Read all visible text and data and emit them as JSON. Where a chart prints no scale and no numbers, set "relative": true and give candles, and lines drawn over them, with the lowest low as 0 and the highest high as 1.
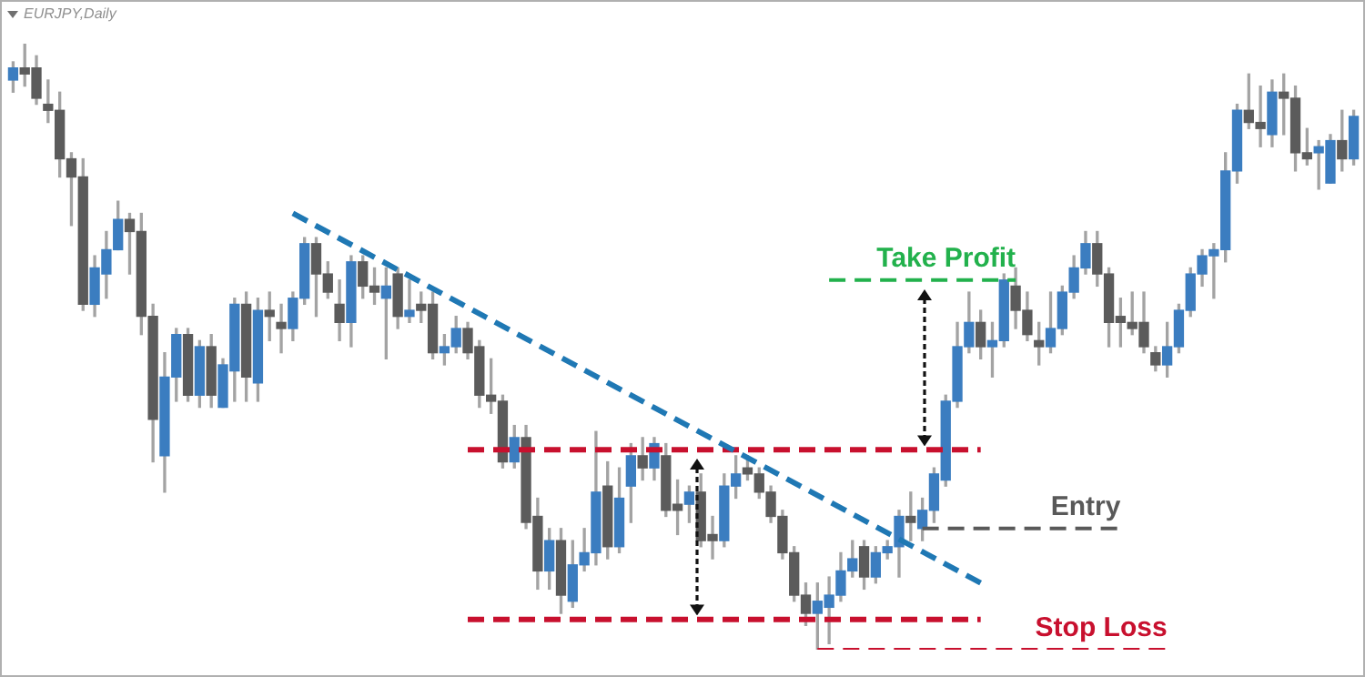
{
  "chart_data": {
    "type": "candlestick",
    "title": "EURJPY,Daily",
    "relative": true,
    "legend": false,
    "tick_labels": false,
    "categories": [
      null,
      null,
      null,
      null,
      null,
      null,
      null,
      null,
      null,
      null,
      null,
      null,
      null,
      null,
      null,
      null,
      null,
      null,
      null,
      null,
      null,
      null,
      null,
      null,
      null,
      null,
      null,
      null,
      null,
      null,
      null,
      null,
      null,
      null,
      null,
      null,
      null,
      null,
      null,
      null,
      null,
      null,
      null,
      null,
      null,
      null,
      null,
      null,
      null,
      null,
      null,
      null,
      null,
      null,
      null,
      null,
      null,
      null,
      null,
      null,
      null,
      null,
      null,
      null,
      null,
      null,
      null,
      null,
      null,
      null,
      null,
      null,
      null,
      null,
      null,
      null,
      null,
      null,
      null,
      null,
      null,
      null,
      null,
      null,
      null,
      null,
      null,
      null,
      null,
      null,
      null,
      null,
      null,
      null,
      null,
      null,
      null,
      null,
      null,
      null,
      null,
      null,
      null,
      null,
      null,
      null,
      null,
      null,
      null,
      null,
      null,
      null,
      null,
      null,
      null,
      null
    ],
    "ohlc": [
      [
        0.94,
        0.97,
        0.92,
        0.96
      ],
      [
        0.96,
        1,
        0.93,
        0.95
      ],
      [
        0.96,
        0.98,
        0.9,
        0.91
      ],
      [
        0.9,
        0.94,
        0.87,
        0.89
      ],
      [
        0.89,
        0.92,
        0.78,
        0.81
      ],
      [
        0.81,
        0.82,
        0.7,
        0.78
      ],
      [
        0.78,
        0.81,
        0.56,
        0.57
      ],
      [
        0.57,
        0.65,
        0.55,
        0.63
      ],
      [
        0.62,
        0.69,
        0.58,
        0.66
      ],
      [
        0.66,
        0.74,
        0.66,
        0.71
      ],
      [
        0.71,
        0.72,
        0.62,
        0.69
      ],
      [
        0.69,
        0.72,
        0.52,
        0.55
      ],
      [
        0.55,
        0.57,
        0.31,
        0.38
      ],
      [
        0.32,
        0.49,
        0.26,
        0.45
      ],
      [
        0.45,
        0.53,
        0.41,
        0.52
      ],
      [
        0.52,
        0.53,
        0.41,
        0.42
      ],
      [
        0.42,
        0.51,
        0.4,
        0.5
      ],
      [
        0.5,
        0.52,
        0.4,
        0.42
      ],
      [
        0.4,
        0.48,
        0.4,
        0.47
      ],
      [
        0.46,
        0.58,
        0.41,
        0.57
      ],
      [
        0.57,
        0.59,
        0.41,
        0.45
      ],
      [
        0.44,
        0.58,
        0.41,
        0.56
      ],
      [
        0.56,
        0.59,
        0.51,
        0.55
      ],
      [
        0.54,
        0.57,
        0.49,
        0.53
      ],
      [
        0.53,
        0.59,
        0.51,
        0.58
      ],
      [
        0.58,
        0.68,
        0.57,
        0.67
      ],
      [
        0.67,
        0.68,
        0.55,
        0.62
      ],
      [
        0.62,
        0.64,
        0.58,
        0.59
      ],
      [
        0.57,
        0.61,
        0.51,
        0.54
      ],
      [
        0.54,
        0.65,
        0.5,
        0.64
      ],
      [
        0.64,
        0.65,
        0.58,
        0.6
      ],
      [
        0.6,
        0.63,
        0.57,
        0.59
      ],
      [
        0.58,
        0.63,
        0.48,
        0.6
      ],
      [
        0.62,
        0.63,
        0.53,
        0.55
      ],
      [
        0.55,
        0.61,
        0.54,
        0.56
      ],
      [
        0.57,
        0.59,
        0.54,
        0.56
      ],
      [
        0.57,
        0.59,
        0.48,
        0.49
      ],
      [
        0.49,
        0.52,
        0.47,
        0.5
      ],
      [
        0.5,
        0.55,
        0.49,
        0.53
      ],
      [
        0.53,
        0.54,
        0.48,
        0.49
      ],
      [
        0.5,
        0.51,
        0.4,
        0.42
      ],
      [
        0.42,
        0.48,
        0.39,
        0.41
      ],
      [
        0.41,
        0.42,
        0.3,
        0.31
      ],
      [
        0.31,
        0.37,
        0.3,
        0.35
      ],
      [
        0.35,
        0.37,
        0.2,
        0.21
      ],
      [
        0.22,
        0.25,
        0.1,
        0.13
      ],
      [
        0.13,
        0.2,
        0.1,
        0.18
      ],
      [
        0.18,
        0.2,
        0.06,
        0.09
      ],
      [
        0.08,
        0.18,
        0.07,
        0.14
      ],
      [
        0.14,
        0.2,
        0.13,
        0.16
      ],
      [
        0.16,
        0.36,
        0.14,
        0.26
      ],
      [
        0.27,
        0.31,
        0.15,
        0.17
      ],
      [
        0.17,
        0.3,
        0.16,
        0.25
      ],
      [
        0.27,
        0.34,
        0.21,
        0.32
      ],
      [
        0.32,
        0.35,
        0.28,
        0.3
      ],
      [
        0.3,
        0.35,
        0.28,
        0.34
      ],
      [
        0.32,
        0.34,
        0.22,
        0.23
      ],
      [
        0.24,
        0.28,
        0.19,
        0.23
      ],
      [
        0.24,
        0.27,
        0.21,
        0.26
      ],
      [
        0.26,
        0.29,
        0.17,
        0.18
      ],
      [
        0.19,
        0.22,
        0.15,
        0.18
      ],
      [
        0.18,
        0.29,
        0.17,
        0.27
      ],
      [
        0.27,
        0.32,
        0.25,
        0.29
      ],
      [
        0.3,
        0.32,
        0.28,
        0.29
      ],
      [
        0.29,
        0.3,
        0.25,
        0.26
      ],
      [
        0.26,
        0.27,
        0.21,
        0.22
      ],
      [
        0.22,
        0.23,
        0.15,
        0.16
      ],
      [
        0.16,
        0.17,
        0.08,
        0.09
      ],
      [
        0.09,
        0.11,
        0.04,
        0.06
      ],
      [
        0.06,
        0.11,
        0,
        0.08
      ],
      [
        0.07,
        0.12,
        0.01,
        0.09
      ],
      [
        0.09,
        0.16,
        0.08,
        0.13
      ],
      [
        0.13,
        0.18,
        0.12,
        0.15
      ],
      [
        0.17,
        0.18,
        0.1,
        0.12
      ],
      [
        0.12,
        0.17,
        0.11,
        0.16
      ],
      [
        0.16,
        0.18,
        0.15,
        0.17
      ],
      [
        0.17,
        0.23,
        0.12,
        0.22
      ],
      [
        0.22,
        0.26,
        0.18,
        0.21
      ],
      [
        0.2,
        0.25,
        0.18,
        0.23
      ],
      [
        0.23,
        0.3,
        0.21,
        0.29
      ],
      [
        0.28,
        0.42,
        0.27,
        0.41
      ],
      [
        0.41,
        0.54,
        0.4,
        0.5
      ],
      [
        0.5,
        0.59,
        0.49,
        0.54
      ],
      [
        0.54,
        0.56,
        0.48,
        0.5
      ],
      [
        0.5,
        0.54,
        0.45,
        0.51
      ],
      [
        0.51,
        0.62,
        0.5,
        0.61
      ],
      [
        0.6,
        0.63,
        0.53,
        0.56
      ],
      [
        0.56,
        0.59,
        0.51,
        0.52
      ],
      [
        0.51,
        0.54,
        0.47,
        0.5
      ],
      [
        0.5,
        0.59,
        0.49,
        0.53
      ],
      [
        0.53,
        0.6,
        0.52,
        0.59
      ],
      [
        0.59,
        0.65,
        0.58,
        0.63
      ],
      [
        0.63,
        0.69,
        0.62,
        0.67
      ],
      [
        0.67,
        0.69,
        0.6,
        0.62
      ],
      [
        0.62,
        0.63,
        0.5,
        0.54
      ],
      [
        0.55,
        0.58,
        0.5,
        0.54
      ],
      [
        0.54,
        0.59,
        0.52,
        0.53
      ],
      [
        0.54,
        0.59,
        0.49,
        0.5
      ],
      [
        0.49,
        0.5,
        0.46,
        0.47
      ],
      [
        0.47,
        0.54,
        0.45,
        0.5
      ],
      [
        0.5,
        0.57,
        0.49,
        0.56
      ],
      [
        0.56,
        0.63,
        0.55,
        0.62
      ],
      [
        0.62,
        0.66,
        0.6,
        0.65
      ],
      [
        0.65,
        0.67,
        0.58,
        0.66
      ],
      [
        0.66,
        0.82,
        0.64,
        0.79
      ],
      [
        0.79,
        0.9,
        0.77,
        0.89
      ],
      [
        0.89,
        0.95,
        0.86,
        0.87
      ],
      [
        0.87,
        0.93,
        0.83,
        0.86
      ],
      [
        0.85,
        0.94,
        0.83,
        0.92
      ],
      [
        0.92,
        0.95,
        0.85,
        0.91
      ],
      [
        0.91,
        0.93,
        0.79,
        0.82
      ],
      [
        0.82,
        0.86,
        0.8,
        0.81
      ],
      [
        0.82,
        0.84,
        0.76,
        0.83
      ],
      [
        0.77,
        0.85,
        0.77,
        0.84
      ],
      [
        0.84,
        0.89,
        0.79,
        0.81
      ],
      [
        0.81,
        0.89,
        0.8,
        0.88
      ]
    ],
    "colors": [
      "#3b7dc0",
      "#5b5b5b",
      "#5b5b5b",
      "#5b5b5b",
      "#5b5b5b",
      "#5b5b5b",
      "#5b5b5b",
      "#3b7dc0",
      "#3b7dc0",
      "#3b7dc0",
      "#5b5b5b",
      "#5b5b5b",
      "#5b5b5b",
      "#3b7dc0",
      "#3b7dc0",
      "#5b5b5b",
      "#3b7dc0",
      "#5b5b5b",
      "#3b7dc0",
      "#3b7dc0",
      "#5b5b5b",
      "#3b7dc0",
      "#5b5b5b",
      "#5b5b5b",
      "#3b7dc0",
      "#3b7dc0",
      "#5b5b5b",
      "#5b5b5b",
      "#5b5b5b",
      "#3b7dc0",
      "#5b5b5b",
      "#5b5b5b",
      "#3b7dc0",
      "#5b5b5b",
      "#3b7dc0",
      "#5b5b5b",
      "#5b5b5b",
      "#3b7dc0",
      "#3b7dc0",
      "#5b5b5b",
      "#5b5b5b",
      "#5b5b5b",
      "#5b5b5b",
      "#3b7dc0",
      "#5b5b5b",
      "#5b5b5b",
      "#3b7dc0",
      "#5b5b5b",
      "#3b7dc0",
      "#3b7dc0",
      "#3b7dc0",
      "#5b5b5b",
      "#3b7dc0",
      "#3b7dc0",
      "#5b5b5b",
      "#3b7dc0",
      "#5b5b5b",
      "#5b5b5b",
      "#3b7dc0",
      "#5b5b5b",
      "#5b5b5b",
      "#3b7dc0",
      "#3b7dc0",
      "#5b5b5b",
      "#5b5b5b",
      "#5b5b5b",
      "#5b5b5b",
      "#5b5b5b",
      "#5b5b5b",
      "#3b7dc0",
      "#3b7dc0",
      "#3b7dc0",
      "#3b7dc0",
      "#5b5b5b",
      "#3b7dc0",
      "#3b7dc0",
      "#3b7dc0",
      "#5b5b5b",
      "#3b7dc0",
      "#3b7dc0",
      "#3b7dc0",
      "#3b7dc0",
      "#3b7dc0",
      "#5b5b5b",
      "#3b7dc0",
      "#3b7dc0",
      "#5b5b5b",
      "#5b5b5b",
      "#5b5b5b",
      "#3b7dc0",
      "#3b7dc0",
      "#3b7dc0",
      "#3b7dc0",
      "#5b5b5b",
      "#5b5b5b",
      "#5b5b5b",
      "#5b5b5b",
      "#5b5b5b",
      "#5b5b5b",
      "#3b7dc0",
      "#3b7dc0",
      "#3b7dc0",
      "#3b7dc0",
      "#3b7dc0",
      "#3b7dc0",
      "#3b7dc0",
      "#5b5b5b",
      "#5b5b5b",
      "#3b7dc0",
      "#5b5b5b",
      "#5b5b5b",
      "#5b5b5b",
      "#3b7dc0",
      "#3b7dc0",
      "#5b5b5b",
      "#3b7dc0"
    ],
    "series": [
      {
        "type": "line",
        "color": "#1f78b4",
        "line_style": "dashed",
        "values": [
          null,
          null,
          null,
          null,
          null,
          null,
          null,
          null,
          null,
          null,
          null,
          null,
          null,
          null,
          null,
          null,
          null,
          null,
          null,
          null,
          null,
          null,
          null,
          null,
          0.72,
          null,
          null,
          null,
          null,
          null,
          null,
          null,
          null,
          null,
          null,
          null,
          null,
          null,
          null,
          null,
          null,
          null,
          null,
          null,
          null,
          null,
          null,
          null,
          null,
          null,
          null,
          null,
          null,
          null,
          null,
          null,
          null,
          null,
          null,
          null,
          null,
          null,
          null,
          null,
          null,
          null,
          null,
          null,
          null,
          null,
          null,
          null,
          null,
          null,
          null,
          null,
          null,
          null,
          null,
          null,
          null,
          null,
          null,
          0.11,
          null,
          null,
          null,
          null,
          null,
          null,
          null,
          null,
          null,
          null,
          null,
          null,
          null,
          null,
          null,
          null,
          null,
          null,
          null,
          null,
          null,
          null,
          null,
          null,
          null,
          null,
          null,
          null,
          null,
          null,
          null,
          null
        ]
      },
      {
        "type": "line",
        "color": "#c8102e",
        "line_style": "dashed",
        "values": [
          null,
          null,
          null,
          null,
          null,
          null,
          null,
          null,
          null,
          null,
          null,
          null,
          null,
          null,
          null,
          null,
          null,
          null,
          null,
          null,
          null,
          null,
          null,
          null,
          null,
          null,
          null,
          null,
          null,
          null,
          null,
          null,
          null,
          null,
          null,
          null,
          null,
          null,
          null,
          0.33,
          null,
          null,
          null,
          null,
          null,
          null,
          null,
          null,
          null,
          null,
          null,
          null,
          null,
          null,
          null,
          null,
          null,
          null,
          null,
          null,
          null,
          null,
          null,
          null,
          null,
          null,
          null,
          null,
          null,
          null,
          null,
          null,
          null,
          null,
          null,
          null,
          null,
          null,
          null,
          null,
          null,
          null,
          null,
          0.33,
          null,
          null,
          null,
          null,
          null,
          null,
          null,
          null,
          null,
          null,
          null,
          null,
          null,
          null,
          null,
          null,
          null,
          null,
          null,
          null,
          null,
          null,
          null,
          null,
          null,
          null,
          null,
          null,
          null,
          null,
          null,
          null
        ]
      },
      {
        "type": "line",
        "color": "#c8102e",
        "line_style": "dashed",
        "values": [
          null,
          null,
          null,
          null,
          null,
          null,
          null,
          null,
          null,
          null,
          null,
          null,
          null,
          null,
          null,
          null,
          null,
          null,
          null,
          null,
          null,
          null,
          null,
          null,
          null,
          null,
          null,
          null,
          null,
          null,
          null,
          null,
          null,
          null,
          null,
          null,
          null,
          null,
          null,
          0.05,
          null,
          null,
          null,
          null,
          null,
          null,
          null,
          null,
          null,
          null,
          null,
          null,
          null,
          null,
          null,
          null,
          null,
          null,
          null,
          null,
          null,
          null,
          null,
          null,
          null,
          null,
          null,
          null,
          null,
          null,
          null,
          null,
          null,
          null,
          null,
          null,
          null,
          null,
          null,
          null,
          null,
          null,
          null,
          0.05,
          null,
          null,
          null,
          null,
          null,
          null,
          null,
          null,
          null,
          null,
          null,
          null,
          null,
          null,
          null,
          null,
          null,
          null,
          null,
          null,
          null,
          null,
          null,
          null,
          null,
          null,
          null,
          null,
          null,
          null,
          null,
          null
        ]
      },
      {
        "type": "line",
        "name": "Take Profit",
        "color": "#22b14c",
        "line_style": "dashed",
        "values": [
          null,
          null,
          null,
          null,
          null,
          null,
          null,
          null,
          null,
          null,
          null,
          null,
          null,
          null,
          null,
          null,
          null,
          null,
          null,
          null,
          null,
          null,
          null,
          null,
          null,
          null,
          null,
          null,
          null,
          null,
          null,
          null,
          null,
          null,
          null,
          null,
          null,
          null,
          null,
          null,
          null,
          null,
          null,
          null,
          null,
          null,
          null,
          null,
          null,
          null,
          null,
          null,
          null,
          null,
          null,
          null,
          null,
          null,
          null,
          null,
          null,
          null,
          null,
          null,
          null,
          null,
          null,
          null,
          null,
          null,
          0.61,
          null,
          null,
          null,
          null,
          null,
          null,
          null,
          null,
          null,
          null,
          null,
          null,
          null,
          null,
          null,
          0.61,
          null,
          null,
          null,
          null,
          null,
          null,
          null,
          null,
          null,
          null,
          null,
          null,
          null,
          null,
          null,
          null,
          null,
          null,
          null,
          null,
          null,
          null,
          null,
          null,
          null,
          null,
          null,
          null,
          null
        ]
      },
      {
        "type": "line",
        "name": "Entry",
        "color": "#595959",
        "line_style": "dashed",
        "values": [
          null,
          null,
          null,
          null,
          null,
          null,
          null,
          null,
          null,
          null,
          null,
          null,
          null,
          null,
          null,
          null,
          null,
          null,
          null,
          null,
          null,
          null,
          null,
          null,
          null,
          null,
          null,
          null,
          null,
          null,
          null,
          null,
          null,
          null,
          null,
          null,
          null,
          null,
          null,
          null,
          null,
          null,
          null,
          null,
          null,
          null,
          null,
          null,
          null,
          null,
          null,
          null,
          null,
          null,
          null,
          null,
          null,
          null,
          null,
          null,
          null,
          null,
          null,
          null,
          null,
          null,
          null,
          null,
          null,
          null,
          null,
          null,
          null,
          null,
          null,
          null,
          null,
          null,
          0.2,
          null,
          null,
          null,
          null,
          null,
          null,
          null,
          null,
          null,
          null,
          null,
          null,
          null,
          null,
          null,
          null,
          0.2,
          null,
          null,
          null,
          null,
          null,
          null,
          null,
          null,
          null,
          null,
          null,
          null,
          null,
          null,
          null,
          null,
          null,
          null,
          null,
          null
        ]
      },
      {
        "type": "line",
        "name": "Stop Loss",
        "color": "#c8102e",
        "line_style": "dashed",
        "values": [
          null,
          null,
          null,
          null,
          null,
          null,
          null,
          null,
          null,
          null,
          null,
          null,
          null,
          null,
          null,
          null,
          null,
          null,
          null,
          null,
          null,
          null,
          null,
          null,
          null,
          null,
          null,
          null,
          null,
          null,
          null,
          null,
          null,
          null,
          null,
          null,
          null,
          null,
          null,
          null,
          null,
          null,
          null,
          null,
          null,
          null,
          null,
          null,
          null,
          null,
          null,
          null,
          null,
          null,
          null,
          null,
          null,
          null,
          null,
          null,
          null,
          null,
          null,
          null,
          null,
          null,
          null,
          null,
          null,
          0,
          null,
          null,
          null,
          null,
          null,
          null,
          null,
          null,
          null,
          null,
          null,
          null,
          null,
          null,
          null,
          null,
          null,
          null,
          null,
          null,
          null,
          null,
          null,
          null,
          null,
          null,
          null,
          null,
          null,
          0,
          null,
          null,
          null,
          null,
          null,
          null,
          null,
          null,
          null,
          null,
          null,
          null,
          null,
          null,
          null,
          null
        ]
      }
    ]
  }
}
